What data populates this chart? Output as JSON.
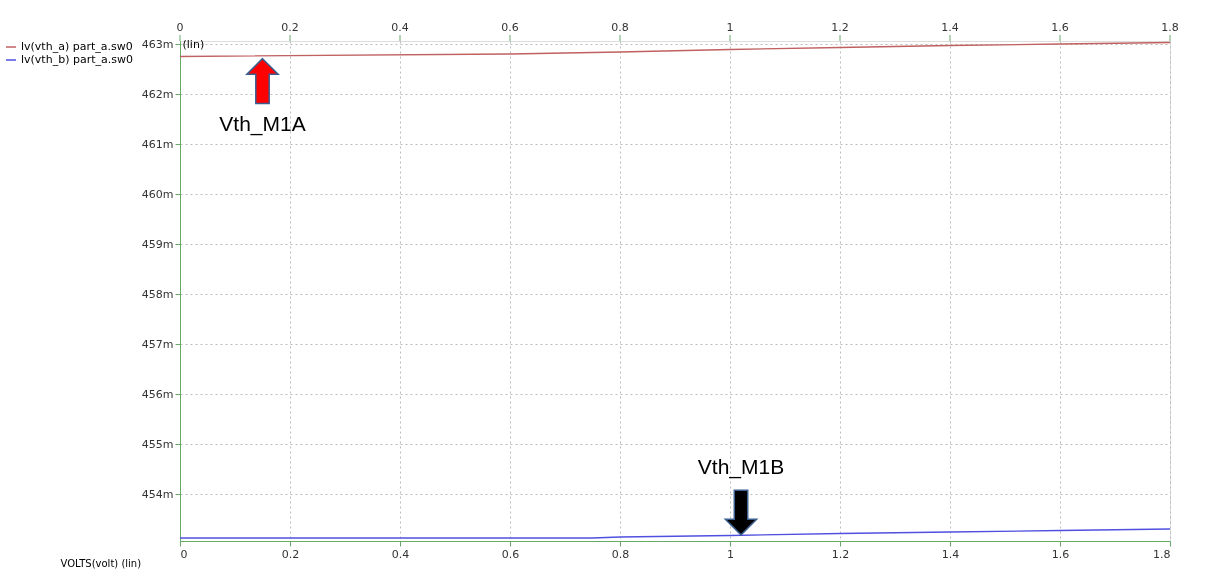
{
  "chart_data": {
    "type": "line",
    "xlabel": "VOLTS(volt) (lin)",
    "ylabel": "(lin)",
    "x": [
      0,
      0.6,
      0.8,
      1.0,
      1.2,
      1.4,
      1.6,
      1.8
    ],
    "series": [
      {
        "name": "lv(vth_a) part_a.sw0",
        "color": "#c06060",
        "values": [
          462.75,
          462.8,
          462.84,
          462.89,
          462.93,
          462.97,
          463.0,
          463.03
        ]
      },
      {
        "name": "lv(vth_b) part_a.sw0",
        "color": "#5050e0",
        "x": [
          0,
          0.75,
          0.8,
          1.0,
          1.2,
          1.4,
          1.6,
          1.8
        ],
        "values": [
          453.13,
          453.13,
          453.15,
          453.18,
          453.22,
          453.25,
          453.28,
          453.31
        ]
      }
    ],
    "xlim": [
      0,
      1.8
    ],
    "xticks": [
      0,
      0.2,
      0.4,
      0.6,
      0.8,
      1,
      1.2,
      1.4,
      1.6,
      1.8
    ],
    "x2lim": [
      0,
      1.8
    ],
    "x2ticks": [
      0,
      0.2,
      0.4,
      0.6,
      0.8,
      1,
      1.2,
      1.4,
      1.6,
      1.8
    ],
    "ylim": [
      453.07,
      463.06
    ],
    "yticks": [
      {
        "value": 454,
        "label": "454m"
      },
      {
        "value": 455,
        "label": "455m"
      },
      {
        "value": 456,
        "label": "456m"
      },
      {
        "value": 457,
        "label": "457m"
      },
      {
        "value": 458,
        "label": "458m"
      },
      {
        "value": 459,
        "label": "459m"
      },
      {
        "value": 460,
        "label": "460m"
      },
      {
        "value": 461,
        "label": "461m"
      },
      {
        "value": 462,
        "label": "462m"
      },
      {
        "value": 463,
        "label": "463m"
      }
    ],
    "annotations": [
      {
        "text": "Vth_M1A",
        "x": 0.15,
        "y": 462.7
      },
      {
        "text": "Vth_M1B",
        "x": 1.02,
        "y": 453.2
      }
    ],
    "grid": true,
    "legend": "top left",
    "line_style": "solid",
    "marker": "none"
  }
}
